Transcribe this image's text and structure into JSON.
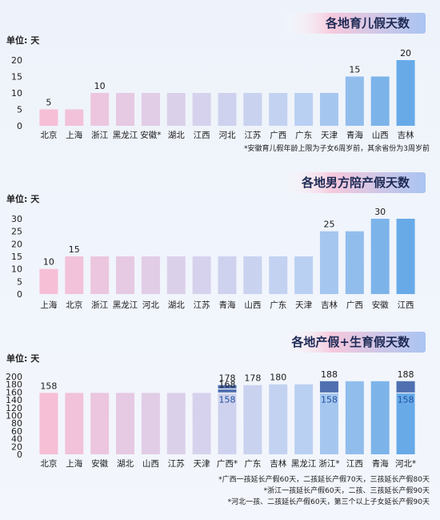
{
  "chart_data": [
    {
      "type": "bar",
      "title": "各地育儿假天数",
      "unit_label": "单位: 天",
      "ylim": [
        0,
        20
      ],
      "yticks": [
        0,
        5,
        10,
        15,
        20
      ],
      "categories": [
        "北京",
        "上海",
        "浙江",
        "黑龙江",
        "安徽*",
        "湖北",
        "江西",
        "河北",
        "江苏",
        "广西",
        "广东",
        "天津",
        "青海",
        "山西",
        "吉林"
      ],
      "values": [
        5,
        5,
        10,
        10,
        10,
        10,
        10,
        10,
        10,
        10,
        10,
        10,
        15,
        15,
        20
      ],
      "data_labels": [
        {
          "index": 0,
          "text": "5"
        },
        {
          "index": 2,
          "text": "10"
        },
        {
          "index": 12,
          "text": "15"
        },
        {
          "index": 14,
          "text": "20"
        }
      ],
      "footnotes": [
        "*安徽育儿假年龄上限为子女6周岁前，其余省份为3周岁前"
      ]
    },
    {
      "type": "bar",
      "title": "各地男方陪产假天数",
      "unit_label": "单位: 天",
      "ylim": [
        0,
        30
      ],
      "yticks": [
        0,
        5,
        10,
        15,
        20,
        25,
        30
      ],
      "categories": [
        "上海",
        "北京",
        "浙江",
        "黑龙江",
        "河北",
        "湖北",
        "江苏",
        "青海",
        "山西",
        "广东",
        "天津",
        "吉林",
        "广西",
        "安徽",
        "江西"
      ],
      "values": [
        10,
        15,
        15,
        15,
        15,
        15,
        15,
        15,
        15,
        15,
        15,
        25,
        25,
        30,
        30
      ],
      "data_labels": [
        {
          "index": 0,
          "text": "10"
        },
        {
          "index": 1,
          "text": "15"
        },
        {
          "index": 11,
          "text": "25"
        },
        {
          "index": 13,
          "text": "30"
        }
      ],
      "footnotes": []
    },
    {
      "type": "bar",
      "title": "各地产假+生育假天数",
      "unit_label": "单位: 天",
      "ylim": [
        0,
        200
      ],
      "yticks": [
        0,
        20,
        40,
        60,
        80,
        100,
        120,
        140,
        160,
        180,
        200
      ],
      "categories": [
        "北京",
        "上海",
        "安徽",
        "湖北",
        "山西",
        "江苏",
        "天津",
        "广西*",
        "广东",
        "吉林",
        "黑龙江",
        "浙江*",
        "江西",
        "青海",
        "河北*"
      ],
      "values": [
        158,
        158,
        158,
        158,
        158,
        158,
        158,
        178,
        178,
        180,
        180,
        188,
        188,
        188,
        188
      ],
      "base_values": [
        null,
        null,
        null,
        null,
        null,
        null,
        null,
        158,
        null,
        null,
        null,
        158,
        null,
        null,
        158
      ],
      "data_labels": [
        {
          "index": 0,
          "text": "158"
        },
        {
          "index": 7,
          "text": "178"
        },
        {
          "index": 8,
          "text": "178"
        },
        {
          "index": 9,
          "text": "180"
        },
        {
          "index": 11,
          "text": "188"
        },
        {
          "index": 14,
          "text": "188"
        }
      ],
      "inner_labels": [
        {
          "index": 7,
          "text": "158"
        },
        {
          "index": 7,
          "text": "168",
          "value": 168
        },
        {
          "index": 11,
          "text": "158"
        },
        {
          "index": 14,
          "text": "158"
        }
      ],
      "footnotes": [
        "*广西一孩延长产假60天，二孩延长产假70天，三孩延长产假80天",
        "*浙江一孩延长产假60天，二孩、三孩延长产假90天",
        "*河北一孩、二孩延长产假60天，第三个以上子女延长产假90天"
      ]
    }
  ]
}
